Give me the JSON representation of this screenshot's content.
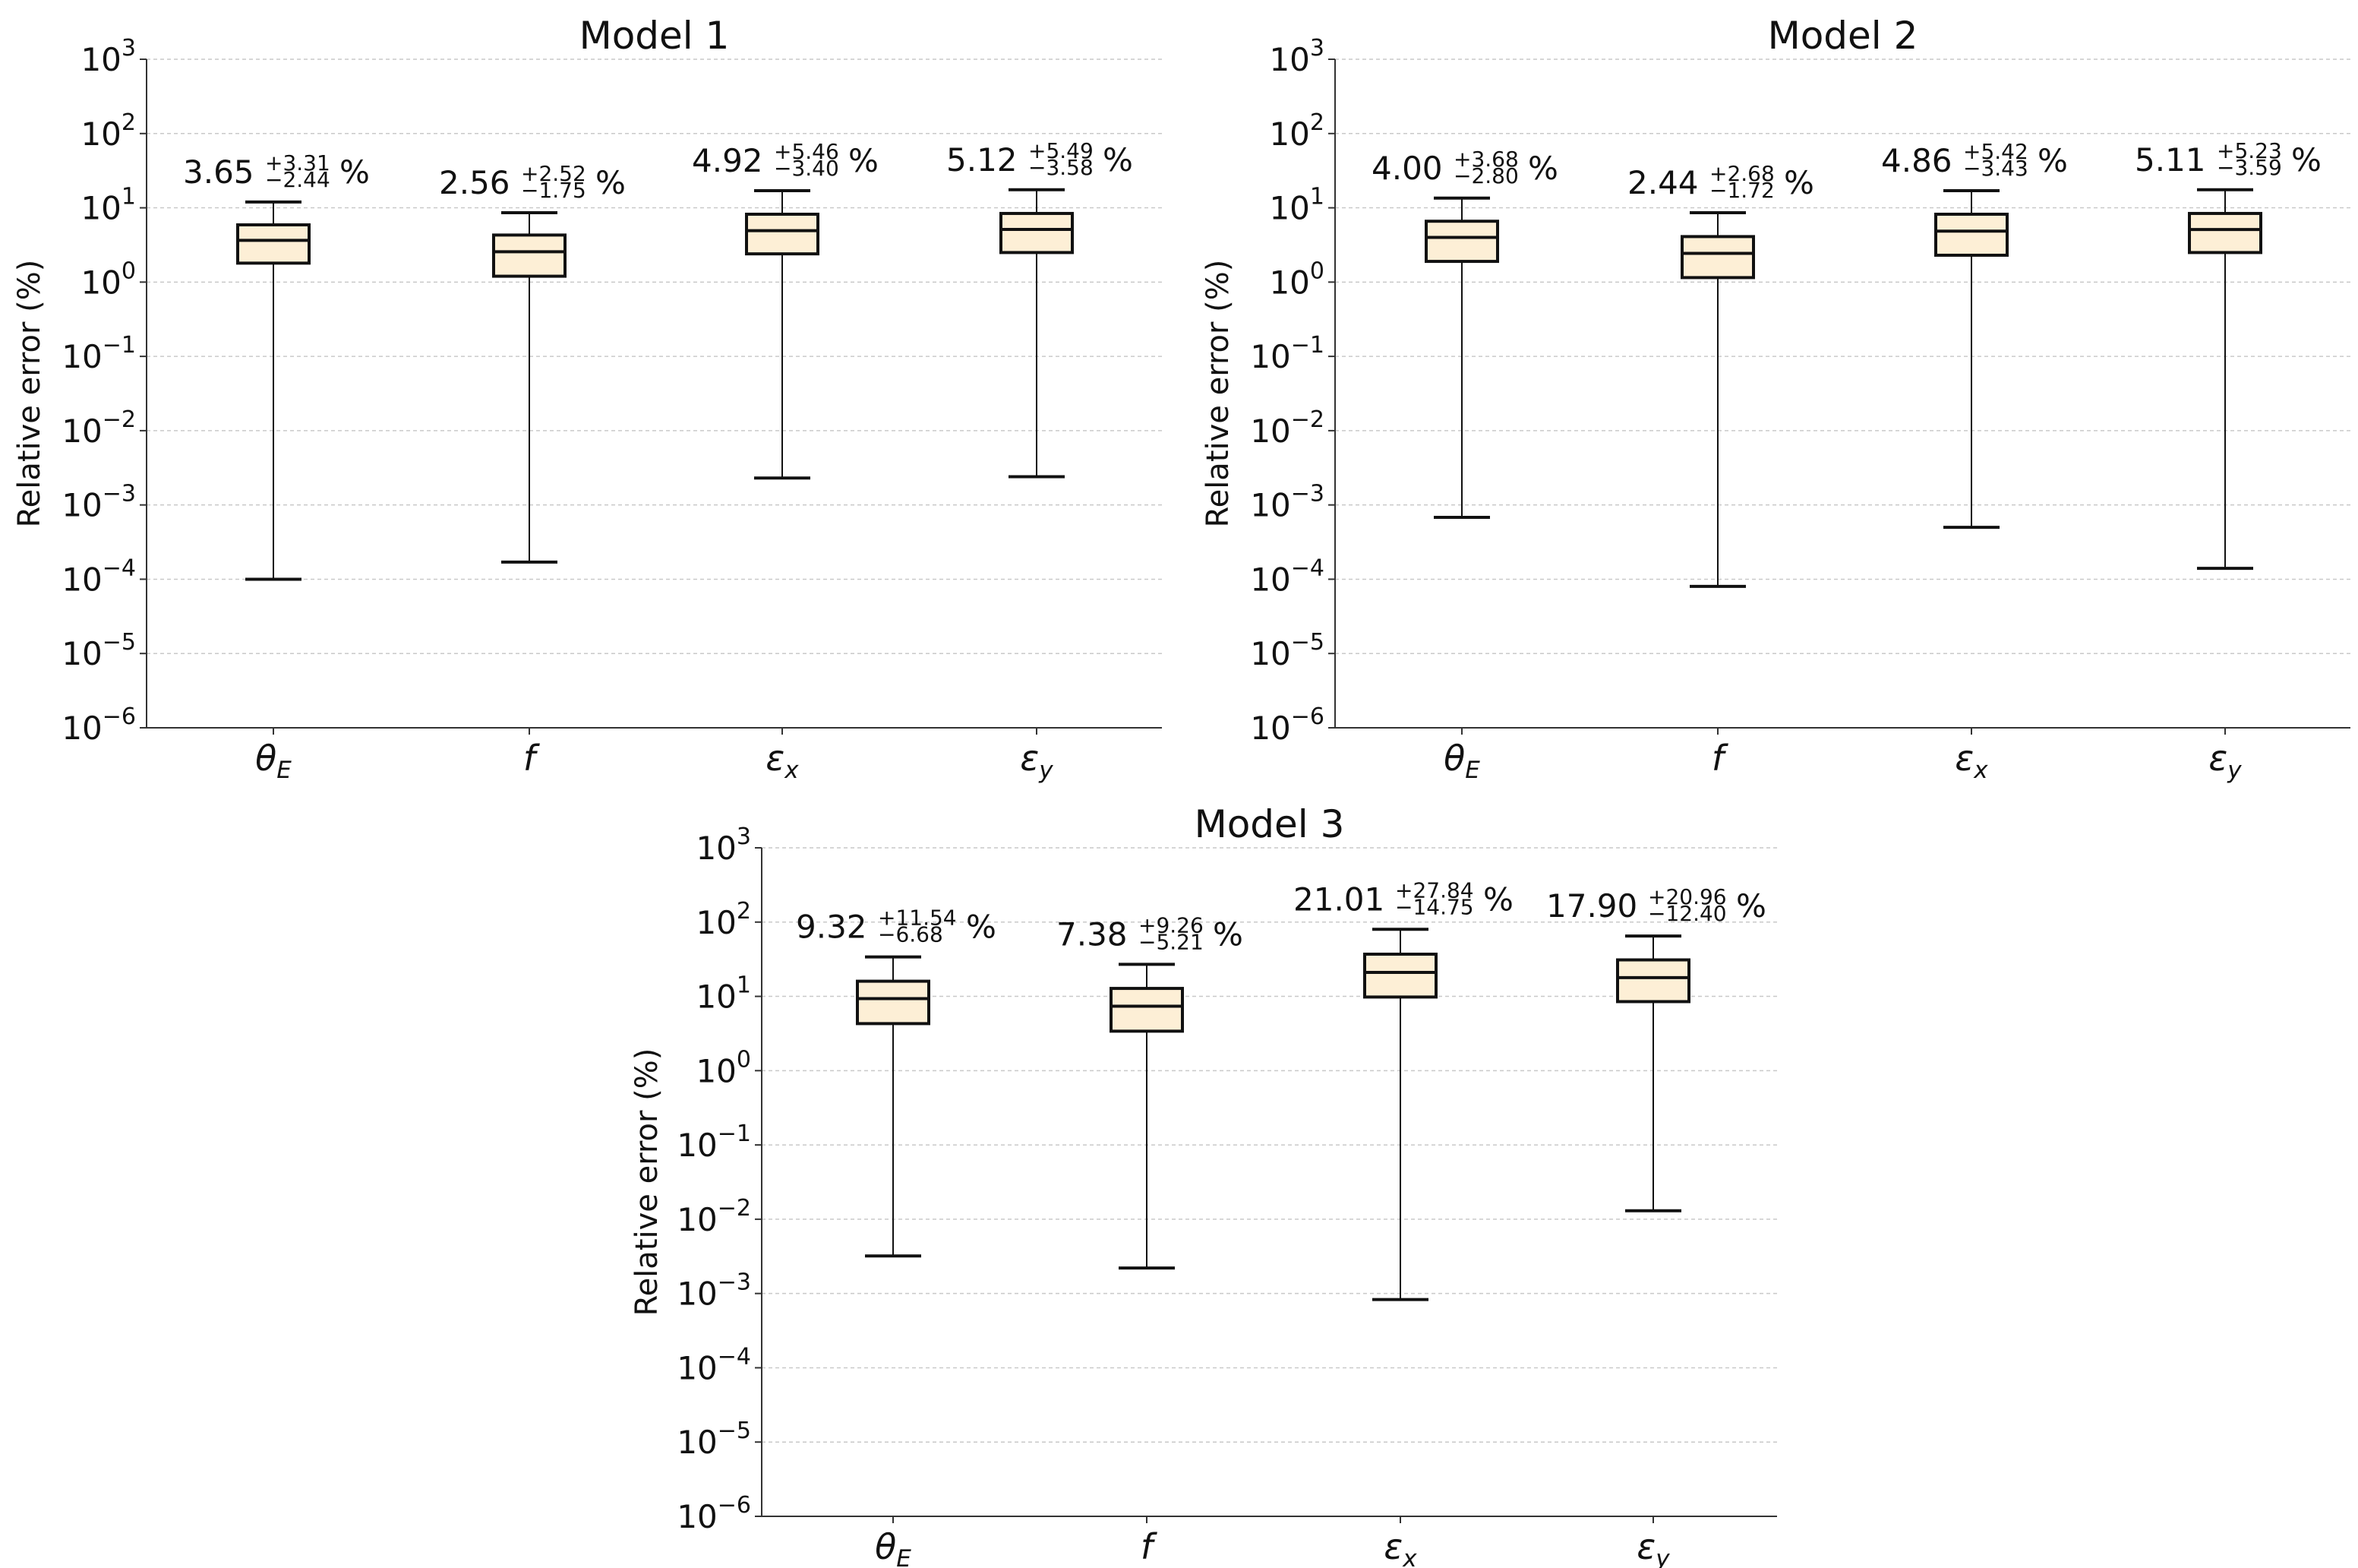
{
  "figure": {
    "ylabel": "Relative error (%)",
    "categories": [
      "θE",
      "f",
      "εx",
      "εy"
    ],
    "category_labels": [
      {
        "sym": "θ",
        "sub": "E"
      },
      {
        "sym": "f",
        "sub": ""
      },
      {
        "sym": "ε",
        "sub": "x"
      },
      {
        "sym": "ε",
        "sub": "y"
      }
    ],
    "ytick_exponents": [
      "−6",
      "−5",
      "−4",
      "−3",
      "−2",
      "−1",
      "0",
      "1",
      "2",
      "3"
    ]
  },
  "chart_data": [
    {
      "type": "box",
      "title": "Model 1",
      "xlabel": "",
      "ylabel": "Relative error (%)",
      "yscale": "log",
      "ylim": [
        1e-06,
        1000
      ],
      "grid": true,
      "categories": [
        "θE",
        "f",
        "εx",
        "εy"
      ],
      "boxes": [
        {
          "whislo": 0.0001,
          "q1": 1.8,
          "med": 3.65,
          "q3": 5.9,
          "whishi": 12
        },
        {
          "whislo": 0.00017,
          "q1": 1.2,
          "med": 2.56,
          "q3": 4.3,
          "whishi": 8.6
        },
        {
          "whislo": 0.0023,
          "q1": 2.4,
          "med": 4.92,
          "q3": 8.2,
          "whishi": 17
        },
        {
          "whislo": 0.0024,
          "q1": 2.5,
          "med": 5.12,
          "q3": 8.4,
          "whishi": 17.5
        }
      ],
      "annotations": [
        {
          "value": "3.65",
          "plus": "+3.31",
          "minus": "−2.44",
          "unit": "%"
        },
        {
          "value": "2.56",
          "plus": "+2.52",
          "minus": "−1.75",
          "unit": "%"
        },
        {
          "value": "4.92",
          "plus": "+5.46",
          "minus": "−3.40",
          "unit": "%"
        },
        {
          "value": "5.12",
          "plus": "+5.49",
          "minus": "−3.58",
          "unit": "%"
        }
      ]
    },
    {
      "type": "box",
      "title": "Model 2",
      "xlabel": "",
      "ylabel": "Relative error (%)",
      "yscale": "log",
      "ylim": [
        1e-06,
        1000
      ],
      "grid": true,
      "categories": [
        "θE",
        "f",
        "εx",
        "εy"
      ],
      "boxes": [
        {
          "whislo": 0.00068,
          "q1": 1.9,
          "med": 4.0,
          "q3": 6.6,
          "whishi": 13.5
        },
        {
          "whislo": 8e-05,
          "q1": 1.15,
          "med": 2.44,
          "q3": 4.1,
          "whishi": 8.6
        },
        {
          "whislo": 0.0005,
          "q1": 2.3,
          "med": 4.86,
          "q3": 8.2,
          "whishi": 17
        },
        {
          "whislo": 0.00014,
          "q1": 2.5,
          "med": 5.11,
          "q3": 8.4,
          "whishi": 17.5
        }
      ],
      "annotations": [
        {
          "value": "4.00",
          "plus": "+3.68",
          "minus": "−2.80",
          "unit": "%"
        },
        {
          "value": "2.44",
          "plus": "+2.68",
          "minus": "−1.72",
          "unit": "%"
        },
        {
          "value": "4.86",
          "plus": "+5.42",
          "minus": "−3.43",
          "unit": "%"
        },
        {
          "value": "5.11",
          "plus": "+5.23",
          "minus": "−3.59",
          "unit": "%"
        }
      ]
    },
    {
      "type": "box",
      "title": "Model 3",
      "xlabel": "",
      "ylabel": "Relative error (%)",
      "yscale": "log",
      "ylim": [
        1e-06,
        1000
      ],
      "grid": true,
      "categories": [
        "θE",
        "f",
        "εx",
        "εy"
      ],
      "boxes": [
        {
          "whislo": 0.0032,
          "q1": 4.3,
          "med": 9.32,
          "q3": 16,
          "whishi": 34
        },
        {
          "whislo": 0.0022,
          "q1": 3.4,
          "med": 7.38,
          "q3": 12.8,
          "whishi": 27
        },
        {
          "whislo": 0.00083,
          "q1": 9.8,
          "med": 21.01,
          "q3": 37,
          "whishi": 80
        },
        {
          "whislo": 0.013,
          "q1": 8.5,
          "med": 17.9,
          "q3": 31,
          "whishi": 65
        }
      ],
      "annotations": [
        {
          "value": "9.32",
          "plus": "+11.54",
          "minus": "−6.68",
          "unit": "%"
        },
        {
          "value": "7.38",
          "plus": "+9.26",
          "minus": "−5.21",
          "unit": "%"
        },
        {
          "value": "21.01",
          "plus": "+27.84",
          "minus": "−14.75",
          "unit": "%"
        },
        {
          "value": "17.90",
          "plus": "+20.96",
          "minus": "−12.40",
          "unit": "%"
        }
      ]
    }
  ]
}
